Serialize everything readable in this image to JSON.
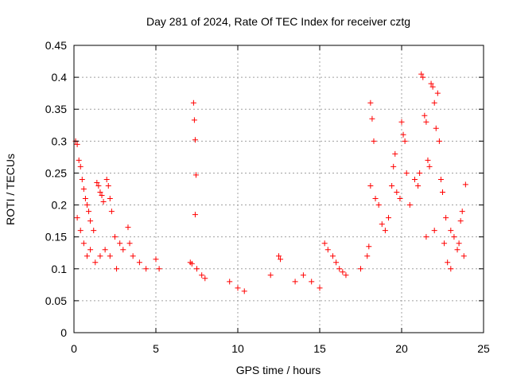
{
  "chart_data": {
    "type": "scatter",
    "title": "Day 281 of 2024, Rate Of TEC Index for receiver cztg",
    "xlabel": "GPS time / hours",
    "ylabel": "ROTI / TECUs",
    "xlim": [
      0,
      25
    ],
    "ylim": [
      0,
      0.45
    ],
    "grid": true,
    "marker": "+",
    "color": "#ff0000",
    "x_ticks": [
      0,
      5,
      10,
      15,
      20,
      25
    ],
    "x_tick_labels": [
      "0",
      "5",
      "10",
      "15",
      "20",
      "25"
    ],
    "y_ticks": [
      0,
      0.05,
      0.1,
      0.15,
      0.2,
      0.25,
      0.3,
      0.35,
      0.4,
      0.45
    ],
    "y_tick_labels": [
      "0",
      "0.05",
      "0.1",
      "0.15",
      "0.2",
      "0.25",
      "0.3",
      "0.35",
      "0.4",
      "0.45"
    ],
    "series": [
      {
        "name": "ROTI",
        "points": [
          [
            0.1,
            0.3
          ],
          [
            0.2,
            0.295
          ],
          [
            0.3,
            0.27
          ],
          [
            0.4,
            0.26
          ],
          [
            0.5,
            0.24
          ],
          [
            0.6,
            0.225
          ],
          [
            0.7,
            0.21
          ],
          [
            0.8,
            0.2
          ],
          [
            0.9,
            0.19
          ],
          [
            1.0,
            0.175
          ],
          [
            1.2,
            0.16
          ],
          [
            1.4,
            0.235
          ],
          [
            1.5,
            0.23
          ],
          [
            1.6,
            0.22
          ],
          [
            1.7,
            0.215
          ],
          [
            1.8,
            0.205
          ],
          [
            2.0,
            0.24
          ],
          [
            2.1,
            0.23
          ],
          [
            2.2,
            0.21
          ],
          [
            2.3,
            0.19
          ],
          [
            2.5,
            0.15
          ],
          [
            2.8,
            0.14
          ],
          [
            3.0,
            0.13
          ],
          [
            3.3,
            0.165
          ],
          [
            3.4,
            0.14
          ],
          [
            3.6,
            0.12
          ],
          [
            4.0,
            0.11
          ],
          [
            4.4,
            0.1
          ],
          [
            5.0,
            0.115
          ],
          [
            5.2,
            0.1
          ],
          [
            0.2,
            0.18
          ],
          [
            0.4,
            0.16
          ],
          [
            0.6,
            0.14
          ],
          [
            0.8,
            0.12
          ],
          [
            1.0,
            0.13
          ],
          [
            1.3,
            0.11
          ],
          [
            1.6,
            0.12
          ],
          [
            1.9,
            0.13
          ],
          [
            2.2,
            0.12
          ],
          [
            2.6,
            0.1
          ],
          [
            7.3,
            0.36
          ],
          [
            7.35,
            0.333
          ],
          [
            7.4,
            0.302
          ],
          [
            7.45,
            0.247
          ],
          [
            7.4,
            0.185
          ],
          [
            7.1,
            0.11
          ],
          [
            7.2,
            0.108
          ],
          [
            7.5,
            0.1
          ],
          [
            7.8,
            0.09
          ],
          [
            8.0,
            0.085
          ],
          [
            9.5,
            0.08
          ],
          [
            10.0,
            0.07
          ],
          [
            10.4,
            0.065
          ],
          [
            12.0,
            0.09
          ],
          [
            12.5,
            0.12
          ],
          [
            12.6,
            0.115
          ],
          [
            13.5,
            0.08
          ],
          [
            14.0,
            0.09
          ],
          [
            14.5,
            0.08
          ],
          [
            15.0,
            0.07
          ],
          [
            15.3,
            0.14
          ],
          [
            15.5,
            0.13
          ],
          [
            15.8,
            0.12
          ],
          [
            16.0,
            0.11
          ],
          [
            16.2,
            0.1
          ],
          [
            16.4,
            0.095
          ],
          [
            16.6,
            0.09
          ],
          [
            17.5,
            0.1
          ],
          [
            17.9,
            0.12
          ],
          [
            18.0,
            0.135
          ],
          [
            18.1,
            0.36
          ],
          [
            18.2,
            0.335
          ],
          [
            18.3,
            0.3
          ],
          [
            18.1,
            0.23
          ],
          [
            18.4,
            0.21
          ],
          [
            18.6,
            0.2
          ],
          [
            18.8,
            0.17
          ],
          [
            19.0,
            0.16
          ],
          [
            19.2,
            0.18
          ],
          [
            19.4,
            0.23
          ],
          [
            19.5,
            0.26
          ],
          [
            19.6,
            0.28
          ],
          [
            19.7,
            0.22
          ],
          [
            19.9,
            0.21
          ],
          [
            20.0,
            0.33
          ],
          [
            20.1,
            0.31
          ],
          [
            20.2,
            0.3
          ],
          [
            20.3,
            0.25
          ],
          [
            20.5,
            0.2
          ],
          [
            20.8,
            0.24
          ],
          [
            21.0,
            0.23
          ],
          [
            21.1,
            0.25
          ],
          [
            21.2,
            0.405
          ],
          [
            21.3,
            0.4
          ],
          [
            21.4,
            0.34
          ],
          [
            21.5,
            0.33
          ],
          [
            21.6,
            0.27
          ],
          [
            21.7,
            0.26
          ],
          [
            21.8,
            0.39
          ],
          [
            21.9,
            0.385
          ],
          [
            22.0,
            0.36
          ],
          [
            22.1,
            0.32
          ],
          [
            22.2,
            0.375
          ],
          [
            22.3,
            0.3
          ],
          [
            22.4,
            0.24
          ],
          [
            22.5,
            0.22
          ],
          [
            22.7,
            0.18
          ],
          [
            23.0,
            0.16
          ],
          [
            23.2,
            0.15
          ],
          [
            23.5,
            0.14
          ],
          [
            23.8,
            0.12
          ],
          [
            23.9,
            0.232
          ],
          [
            23.7,
            0.19
          ],
          [
            23.6,
            0.175
          ],
          [
            23.4,
            0.13
          ],
          [
            23.0,
            0.1
          ],
          [
            22.8,
            0.11
          ],
          [
            22.6,
            0.14
          ],
          [
            22.0,
            0.16
          ],
          [
            21.5,
            0.15
          ]
        ]
      }
    ]
  }
}
